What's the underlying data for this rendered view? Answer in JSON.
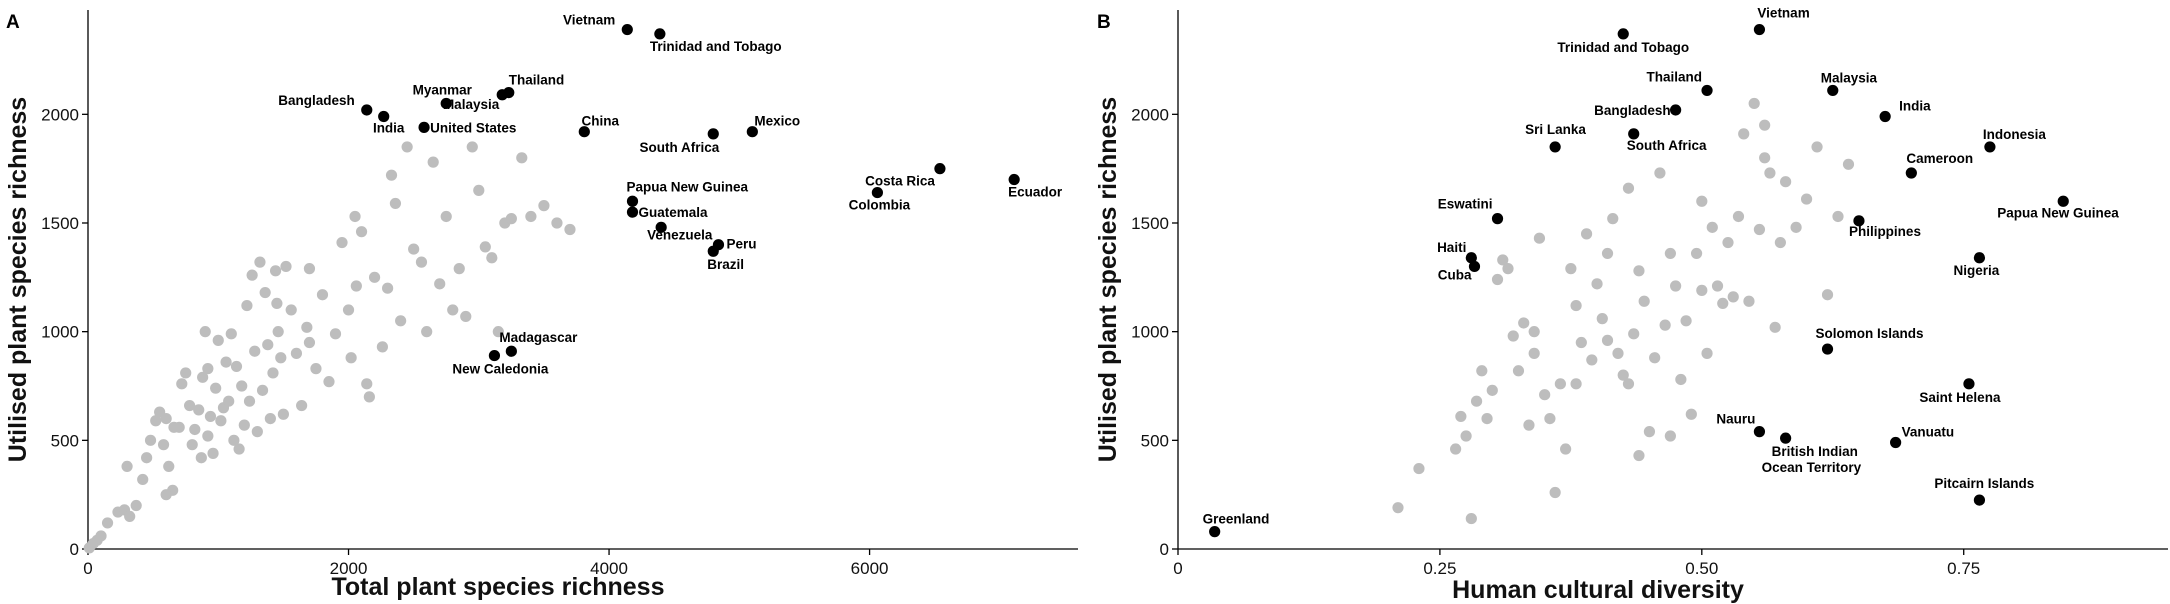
{
  "chart_data": [
    {
      "panel": "A",
      "type": "scatter",
      "xlabel": "Total plant species richness",
      "ylabel": "Utilised plant species richness",
      "xlim": [
        0,
        7600
      ],
      "ylim": [
        0,
        2480
      ],
      "xticks": [
        0,
        2000,
        4000,
        6000
      ],
      "xtick_labels": [
        "0",
        "2000",
        "4000",
        "6000"
      ],
      "yticks": [
        0,
        500,
        1000,
        1500,
        2000
      ],
      "ytick_labels": [
        "0",
        "500",
        "1000",
        "1500",
        "2000"
      ],
      "grid": false,
      "series": [
        {
          "color": "#bdbdbd",
          "points": [
            [
              10,
              5
            ],
            [
              40,
              25
            ],
            [
              70,
              40
            ],
            [
              100,
              60
            ],
            [
              150,
              120
            ],
            [
              230,
              170
            ],
            [
              280,
              180
            ],
            [
              300,
              380
            ],
            [
              320,
              150
            ],
            [
              370,
              200
            ],
            [
              420,
              320
            ],
            [
              450,
              420
            ],
            [
              480,
              500
            ],
            [
              520,
              590
            ],
            [
              550,
              630
            ],
            [
              580,
              480
            ],
            [
              600,
              600
            ],
            [
              620,
              380
            ],
            [
              650,
              270
            ],
            [
              660,
              560
            ],
            [
              700,
              560
            ],
            [
              720,
              760
            ],
            [
              750,
              810
            ],
            [
              780,
              660
            ],
            [
              800,
              480
            ],
            [
              820,
              550
            ],
            [
              850,
              640
            ],
            [
              870,
              420
            ],
            [
              880,
              790
            ],
            [
              900,
              1000
            ],
            [
              920,
              520
            ],
            [
              940,
              610
            ],
            [
              960,
              440
            ],
            [
              980,
              740
            ],
            [
              1000,
              960
            ],
            [
              1020,
              590
            ],
            [
              1040,
              650
            ],
            [
              1060,
              860
            ],
            [
              1080,
              680
            ],
            [
              1100,
              990
            ],
            [
              1120,
              500
            ],
            [
              1140,
              840
            ],
            [
              1160,
              460
            ],
            [
              1180,
              750
            ],
            [
              1200,
              570
            ],
            [
              1220,
              1120
            ],
            [
              1240,
              680
            ],
            [
              1260,
              1260
            ],
            [
              1280,
              910
            ],
            [
              1300,
              540
            ],
            [
              1320,
              1320
            ],
            [
              1340,
              730
            ],
            [
              1360,
              1180
            ],
            [
              1380,
              940
            ],
            [
              1400,
              600
            ],
            [
              1420,
              810
            ],
            [
              1440,
              1280
            ],
            [
              1460,
              1000
            ],
            [
              1480,
              880
            ],
            [
              1500,
              620
            ],
            [
              1520,
              1300
            ],
            [
              1560,
              1100
            ],
            [
              1600,
              900
            ],
            [
              1640,
              660
            ],
            [
              1680,
              1020
            ],
            [
              1700,
              1290
            ],
            [
              1750,
              830
            ],
            [
              1800,
              1170
            ],
            [
              1850,
              770
            ],
            [
              1900,
              990
            ],
            [
              1950,
              1410
            ],
            [
              2000,
              1100
            ],
            [
              2020,
              880
            ],
            [
              2060,
              1210
            ],
            [
              2100,
              1460
            ],
            [
              2160,
              700
            ],
            [
              2200,
              1250
            ],
            [
              2260,
              930
            ],
            [
              2300,
              1200
            ],
            [
              2330,
              1720
            ],
            [
              2360,
              1590
            ],
            [
              2400,
              1050
            ],
            [
              2450,
              1850
            ],
            [
              2500,
              1380
            ],
            [
              2560,
              1320
            ],
            [
              2600,
              1000
            ],
            [
              2650,
              1780
            ],
            [
              2700,
              1220
            ],
            [
              2750,
              1530
            ],
            [
              2800,
              1100
            ],
            [
              2850,
              1290
            ],
            [
              2900,
              1070
            ],
            [
              2950,
              1850
            ],
            [
              3000,
              1650
            ],
            [
              3050,
              1390
            ],
            [
              3100,
              1340
            ],
            [
              3150,
              1000
            ],
            [
              3200,
              1500
            ],
            [
              3250,
              1520
            ],
            [
              3330,
              1800
            ],
            [
              3400,
              1530
            ],
            [
              3500,
              1580
            ],
            [
              3600,
              1500
            ],
            [
              3700,
              1470
            ],
            [
              1450,
              1130
            ],
            [
              1700,
              950
            ],
            [
              2050,
              1530
            ],
            [
              2140,
              760
            ],
            [
              920,
              830
            ],
            [
              600,
              250
            ]
          ]
        },
        {
          "color": "#000000",
          "points": [
            {
              "x": 4140,
              "y": 2390,
              "label": "Vietnam"
            },
            {
              "x": 4390,
              "y": 2370,
              "label": "Trinidad and Tobago"
            },
            {
              "x": 3230,
              "y": 2100,
              "label": "Thailand"
            },
            {
              "x": 3180,
              "y": 2090,
              "label": "Malaysia"
            },
            {
              "x": 2750,
              "y": 2050,
              "label": "Myanmar"
            },
            {
              "x": 2140,
              "y": 2020,
              "label": "Bangladesh"
            },
            {
              "x": 2270,
              "y": 1990,
              "label": "India"
            },
            {
              "x": 2580,
              "y": 1940,
              "label": "United States"
            },
            {
              "x": 3810,
              "y": 1920,
              "label": "China"
            },
            {
              "x": 4800,
              "y": 1910,
              "label": "South Africa"
            },
            {
              "x": 5100,
              "y": 1920,
              "label": "Mexico"
            },
            {
              "x": 4180,
              "y": 1600,
              "label": "Papua New Guinea"
            },
            {
              "x": 4180,
              "y": 1550,
              "label": "Guatemala"
            },
            {
              "x": 4400,
              "y": 1480,
              "label": "Venezuela"
            },
            {
              "x": 4840,
              "y": 1400,
              "label": "Peru"
            },
            {
              "x": 4800,
              "y": 1370,
              "label": "Brazil"
            },
            {
              "x": 6060,
              "y": 1640,
              "label": "Colombia"
            },
            {
              "x": 6540,
              "y": 1750,
              "label": "Costa Rica"
            },
            {
              "x": 7110,
              "y": 1700,
              "label": "Ecuador"
            },
            {
              "x": 3250,
              "y": 910,
              "label": "Madagascar"
            },
            {
              "x": 3120,
              "y": 890,
              "label": "New Caledonia"
            }
          ]
        }
      ]
    },
    {
      "panel": "B",
      "type": "scatter",
      "xlabel": "Human cultural diversity",
      "ylabel": "Utilised plant species richness",
      "xlim": [
        0,
        0.945
      ],
      "ylim": [
        0,
        2480
      ],
      "xticks": [
        0,
        0.25,
        0.5,
        0.75
      ],
      "xtick_labels": [
        "0",
        "0.25",
        "0.50",
        "0.75"
      ],
      "yticks": [
        0,
        500,
        1000,
        1500,
        2000
      ],
      "ytick_labels": [
        "0",
        "500",
        "1000",
        "1500",
        "2000"
      ],
      "grid": false,
      "series": [
        {
          "color": "#bdbdbd",
          "points": [
            [
              0.21,
              190
            ],
            [
              0.23,
              370
            ],
            [
              0.265,
              460
            ],
            [
              0.27,
              610
            ],
            [
              0.275,
              520
            ],
            [
              0.28,
              140
            ],
            [
              0.285,
              680
            ],
            [
              0.29,
              820
            ],
            [
              0.295,
              600
            ],
            [
              0.3,
              730
            ],
            [
              0.305,
              1240
            ],
            [
              0.31,
              1330
            ],
            [
              0.315,
              1290
            ],
            [
              0.32,
              980
            ],
            [
              0.325,
              820
            ],
            [
              0.33,
              1040
            ],
            [
              0.335,
              570
            ],
            [
              0.34,
              900
            ],
            [
              0.345,
              1430
            ],
            [
              0.35,
              710
            ],
            [
              0.355,
              600
            ],
            [
              0.36,
              260
            ],
            [
              0.365,
              760
            ],
            [
              0.37,
              460
            ],
            [
              0.375,
              1290
            ],
            [
              0.38,
              1120
            ],
            [
              0.385,
              950
            ],
            [
              0.39,
              1450
            ],
            [
              0.395,
              870
            ],
            [
              0.4,
              1220
            ],
            [
              0.405,
              1060
            ],
            [
              0.41,
              1360
            ],
            [
              0.415,
              1520
            ],
            [
              0.42,
              900
            ],
            [
              0.425,
              800
            ],
            [
              0.43,
              1660
            ],
            [
              0.435,
              990
            ],
            [
              0.44,
              1280
            ],
            [
              0.445,
              1140
            ],
            [
              0.45,
              540
            ],
            [
              0.455,
              880
            ],
            [
              0.46,
              1730
            ],
            [
              0.465,
              1030
            ],
            [
              0.47,
              1360
            ],
            [
              0.475,
              1210
            ],
            [
              0.48,
              780
            ],
            [
              0.485,
              1050
            ],
            [
              0.49,
              620
            ],
            [
              0.495,
              1360
            ],
            [
              0.5,
              1600
            ],
            [
              0.505,
              900
            ],
            [
              0.51,
              1480
            ],
            [
              0.515,
              1210
            ],
            [
              0.52,
              1130
            ],
            [
              0.525,
              1410
            ],
            [
              0.53,
              1160
            ],
            [
              0.535,
              1530
            ],
            [
              0.54,
              1910
            ],
            [
              0.545,
              1140
            ],
            [
              0.55,
              2050
            ],
            [
              0.555,
              1470
            ],
            [
              0.56,
              1950
            ],
            [
              0.565,
              1730
            ],
            [
              0.57,
              1020
            ],
            [
              0.575,
              1410
            ],
            [
              0.58,
              1690
            ],
            [
              0.59,
              1480
            ],
            [
              0.6,
              1610
            ],
            [
              0.61,
              1850
            ],
            [
              0.62,
              1170
            ],
            [
              0.63,
              1530
            ],
            [
              0.64,
              1770
            ],
            [
              0.41,
              960
            ],
            [
              0.43,
              760
            ],
            [
              0.47,
              520
            ],
            [
              0.34,
              1000
            ],
            [
              0.38,
              760
            ],
            [
              0.44,
              430
            ],
            [
              0.5,
              1190
            ],
            [
              0.56,
              1800
            ]
          ]
        },
        {
          "color": "#000000",
          "points": [
            {
              "x": 0.035,
              "y": 80,
              "label": "Greenland"
            },
            {
              "x": 0.555,
              "y": 2390,
              "label": "Vietnam"
            },
            {
              "x": 0.425,
              "y": 2370,
              "label": "Trinidad and Tobago"
            },
            {
              "x": 0.505,
              "y": 2110,
              "label": "Thailand"
            },
            {
              "x": 0.475,
              "y": 2020,
              "label": "Bangladesh"
            },
            {
              "x": 0.625,
              "y": 2110,
              "label": "Malaysia"
            },
            {
              "x": 0.675,
              "y": 1990,
              "label": "India"
            },
            {
              "x": 0.36,
              "y": 1850,
              "label": "Sri Lanka"
            },
            {
              "x": 0.435,
              "y": 1910,
              "label": "South Africa"
            },
            {
              "x": 0.775,
              "y": 1850,
              "label": "Indonesia"
            },
            {
              "x": 0.7,
              "y": 1730,
              "label": "Cameroon"
            },
            {
              "x": 0.845,
              "y": 1600,
              "label": "Papua New Guinea"
            },
            {
              "x": 0.305,
              "y": 1520,
              "label": "Eswatini"
            },
            {
              "x": 0.65,
              "y": 1510,
              "label": "Philippines"
            },
            {
              "x": 0.28,
              "y": 1340,
              "label": "Haiti"
            },
            {
              "x": 0.283,
              "y": 1300,
              "label": "Cuba"
            },
            {
              "x": 0.765,
              "y": 1340,
              "label": "Nigeria"
            },
            {
              "x": 0.62,
              "y": 920,
              "label": "Solomon Islands"
            },
            {
              "x": 0.755,
              "y": 760,
              "label": "Saint Helena"
            },
            {
              "x": 0.555,
              "y": 540,
              "label": "Nauru"
            },
            {
              "x": 0.58,
              "y": 510,
              "label": "British Indian Ocean Territory"
            },
            {
              "x": 0.685,
              "y": 490,
              "label": "Vanuatu"
            },
            {
              "x": 0.765,
              "y": 225,
              "label": "Pitcairn Islands"
            }
          ]
        }
      ]
    }
  ]
}
